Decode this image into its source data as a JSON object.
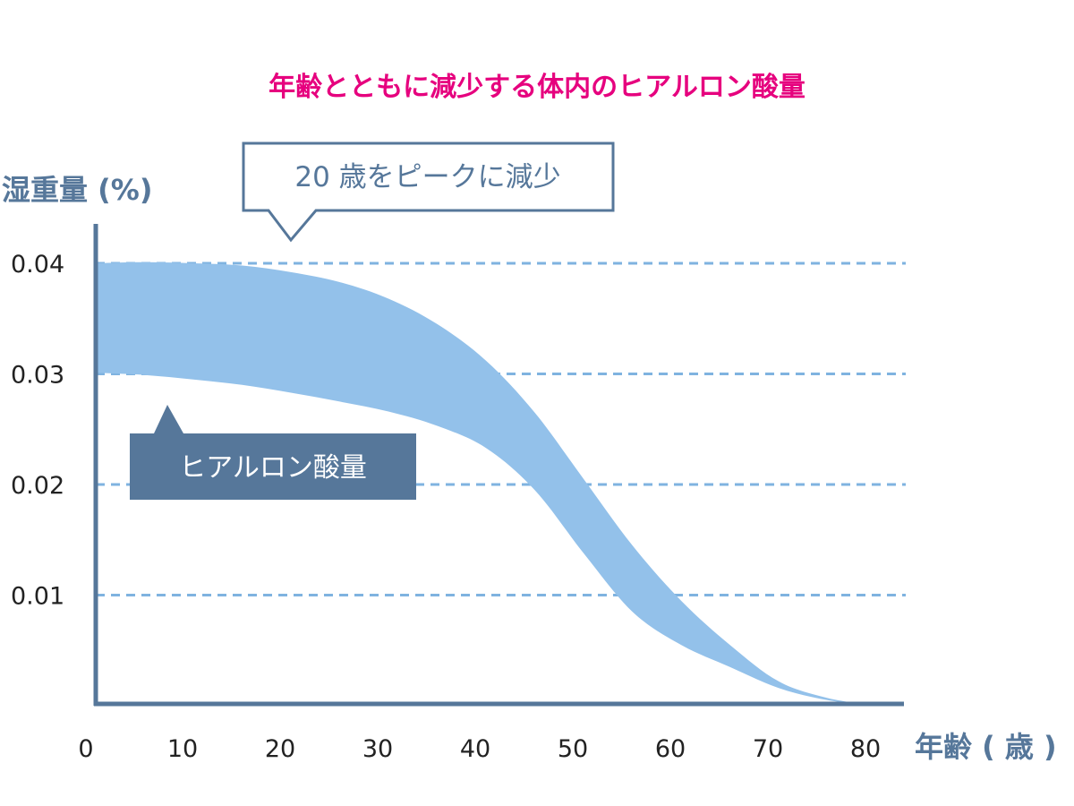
{
  "chart_data": {
    "type": "area",
    "title": "年齢とともに減少する体内のヒアルロン酸量",
    "ylabel": "湿重量 (%)",
    "xlabel": "年齢 ( 歳 )",
    "xlim": [
      0,
      80
    ],
    "ylim": [
      0,
      0.04
    ],
    "x_ticks": [
      "0",
      "10",
      "20",
      "30",
      "40",
      "50",
      "60",
      "70",
      "80"
    ],
    "y_ticks": [
      "0.04",
      "0.03",
      "0.02",
      "0.01"
    ],
    "grid": "dashed horizontal",
    "series": [
      {
        "name": "ヒアルロン酸量",
        "x": [
          0,
          5,
          10,
          15,
          20,
          25,
          30,
          35,
          40,
          45,
          50,
          55,
          60,
          65,
          70,
          75,
          80
        ],
        "upper": [
          0.04,
          0.0401,
          0.04,
          0.0398,
          0.0392,
          0.0383,
          0.0368,
          0.0345,
          0.0312,
          0.0265,
          0.0205,
          0.0145,
          0.0095,
          0.0055,
          0.0022,
          0.0007,
          0.0
        ],
        "lower": [
          0.0301,
          0.0299,
          0.0295,
          0.029,
          0.0283,
          0.0275,
          0.0266,
          0.0253,
          0.0233,
          0.0195,
          0.0138,
          0.0085,
          0.0055,
          0.0035,
          0.0016,
          0.0005,
          0.0
        ]
      }
    ],
    "annotations": {
      "peak_callout": "20 歳をピークに減少",
      "legend_label": "ヒアルロン酸量"
    },
    "colors": {
      "title": "#e6007e",
      "axis": "#56779a",
      "band": "#93c1ea",
      "grid": "#7fb3e0",
      "label_box": "#56779a",
      "tick_text": "#222222"
    }
  }
}
